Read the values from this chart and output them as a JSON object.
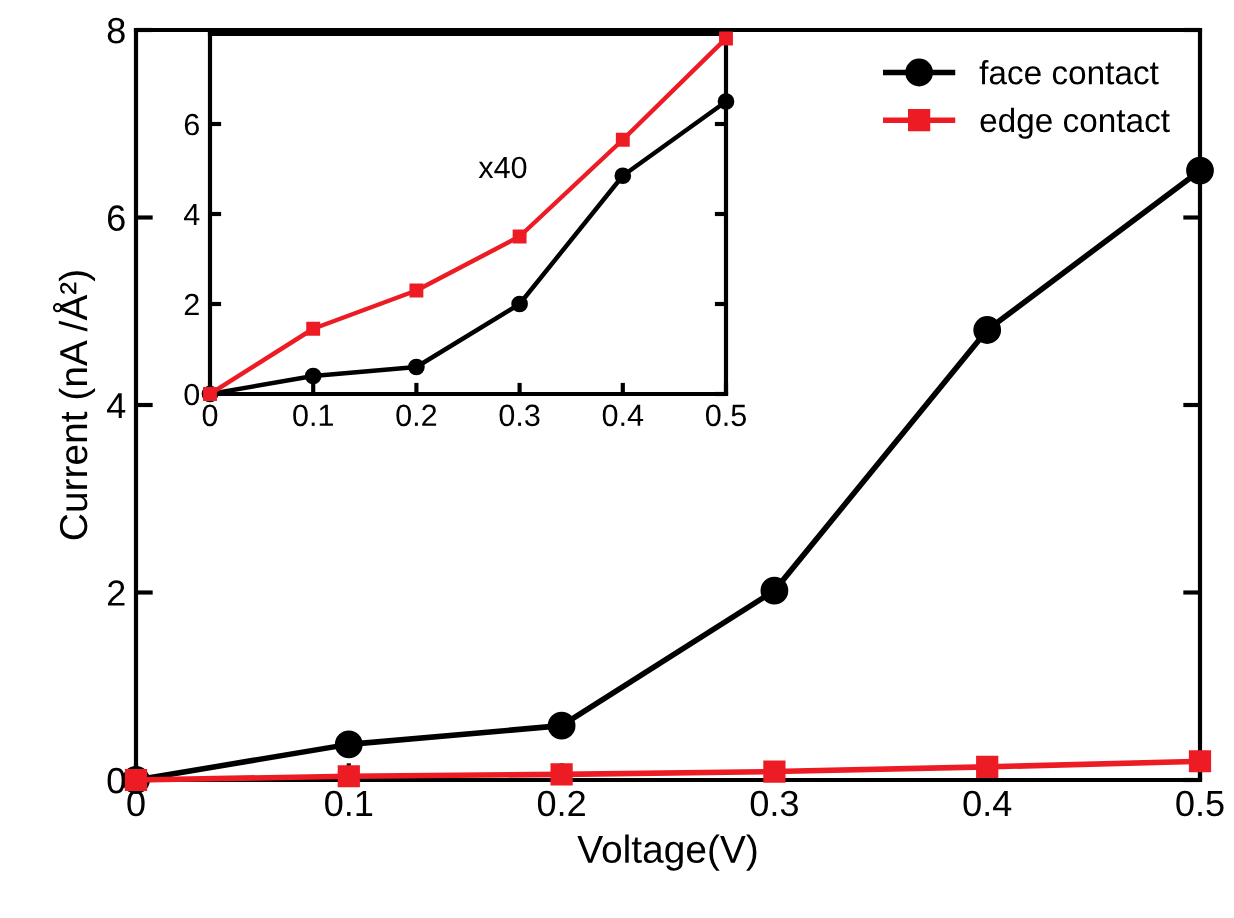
{
  "chart_data": [
    {
      "type": "line",
      "xlabel": "Voltage(V)",
      "ylabel": "Current (nA /Å²)",
      "x": [
        0,
        0.1,
        0.2,
        0.3,
        0.4,
        0.5
      ],
      "series": [
        {
          "name": "face contact",
          "color": "#000000",
          "marker": "circle",
          "values": [
            0,
            0.38,
            0.58,
            2.02,
            4.8,
            6.5
          ]
        },
        {
          "name": "edge contact",
          "color": "#ed1c24",
          "marker": "square",
          "values": [
            0,
            0.04,
            0.06,
            0.09,
            0.14,
            0.2
          ]
        }
      ],
      "xlim": [
        0,
        0.5
      ],
      "xticks": [
        0,
        0.1,
        0.2,
        0.3,
        0.4,
        0.5
      ],
      "ylim": [
        0,
        8
      ],
      "yticks": [
        0,
        2,
        4,
        6,
        8
      ],
      "legend": "top right",
      "grid": false
    },
    {
      "type": "line",
      "annotations": [
        "x40"
      ],
      "x": [
        0,
        0.1,
        0.2,
        0.3,
        0.4,
        0.5
      ],
      "series": [
        {
          "color": "#000000",
          "marker": "circle",
          "values": [
            0,
            0.4,
            0.6,
            2.0,
            4.85,
            6.5
          ]
        },
        {
          "color": "#ed1c24",
          "marker": "square",
          "values": [
            0,
            1.45,
            2.3,
            3.5,
            5.65,
            7.9
          ]
        }
      ],
      "xlim": [
        0,
        0.5
      ],
      "xticks": [
        0,
        0.1,
        0.2,
        0.3,
        0.4,
        0.5
      ],
      "ylim": [
        0,
        8
      ],
      "yticks": [
        0,
        2,
        4,
        6
      ],
      "grid": false
    }
  ]
}
